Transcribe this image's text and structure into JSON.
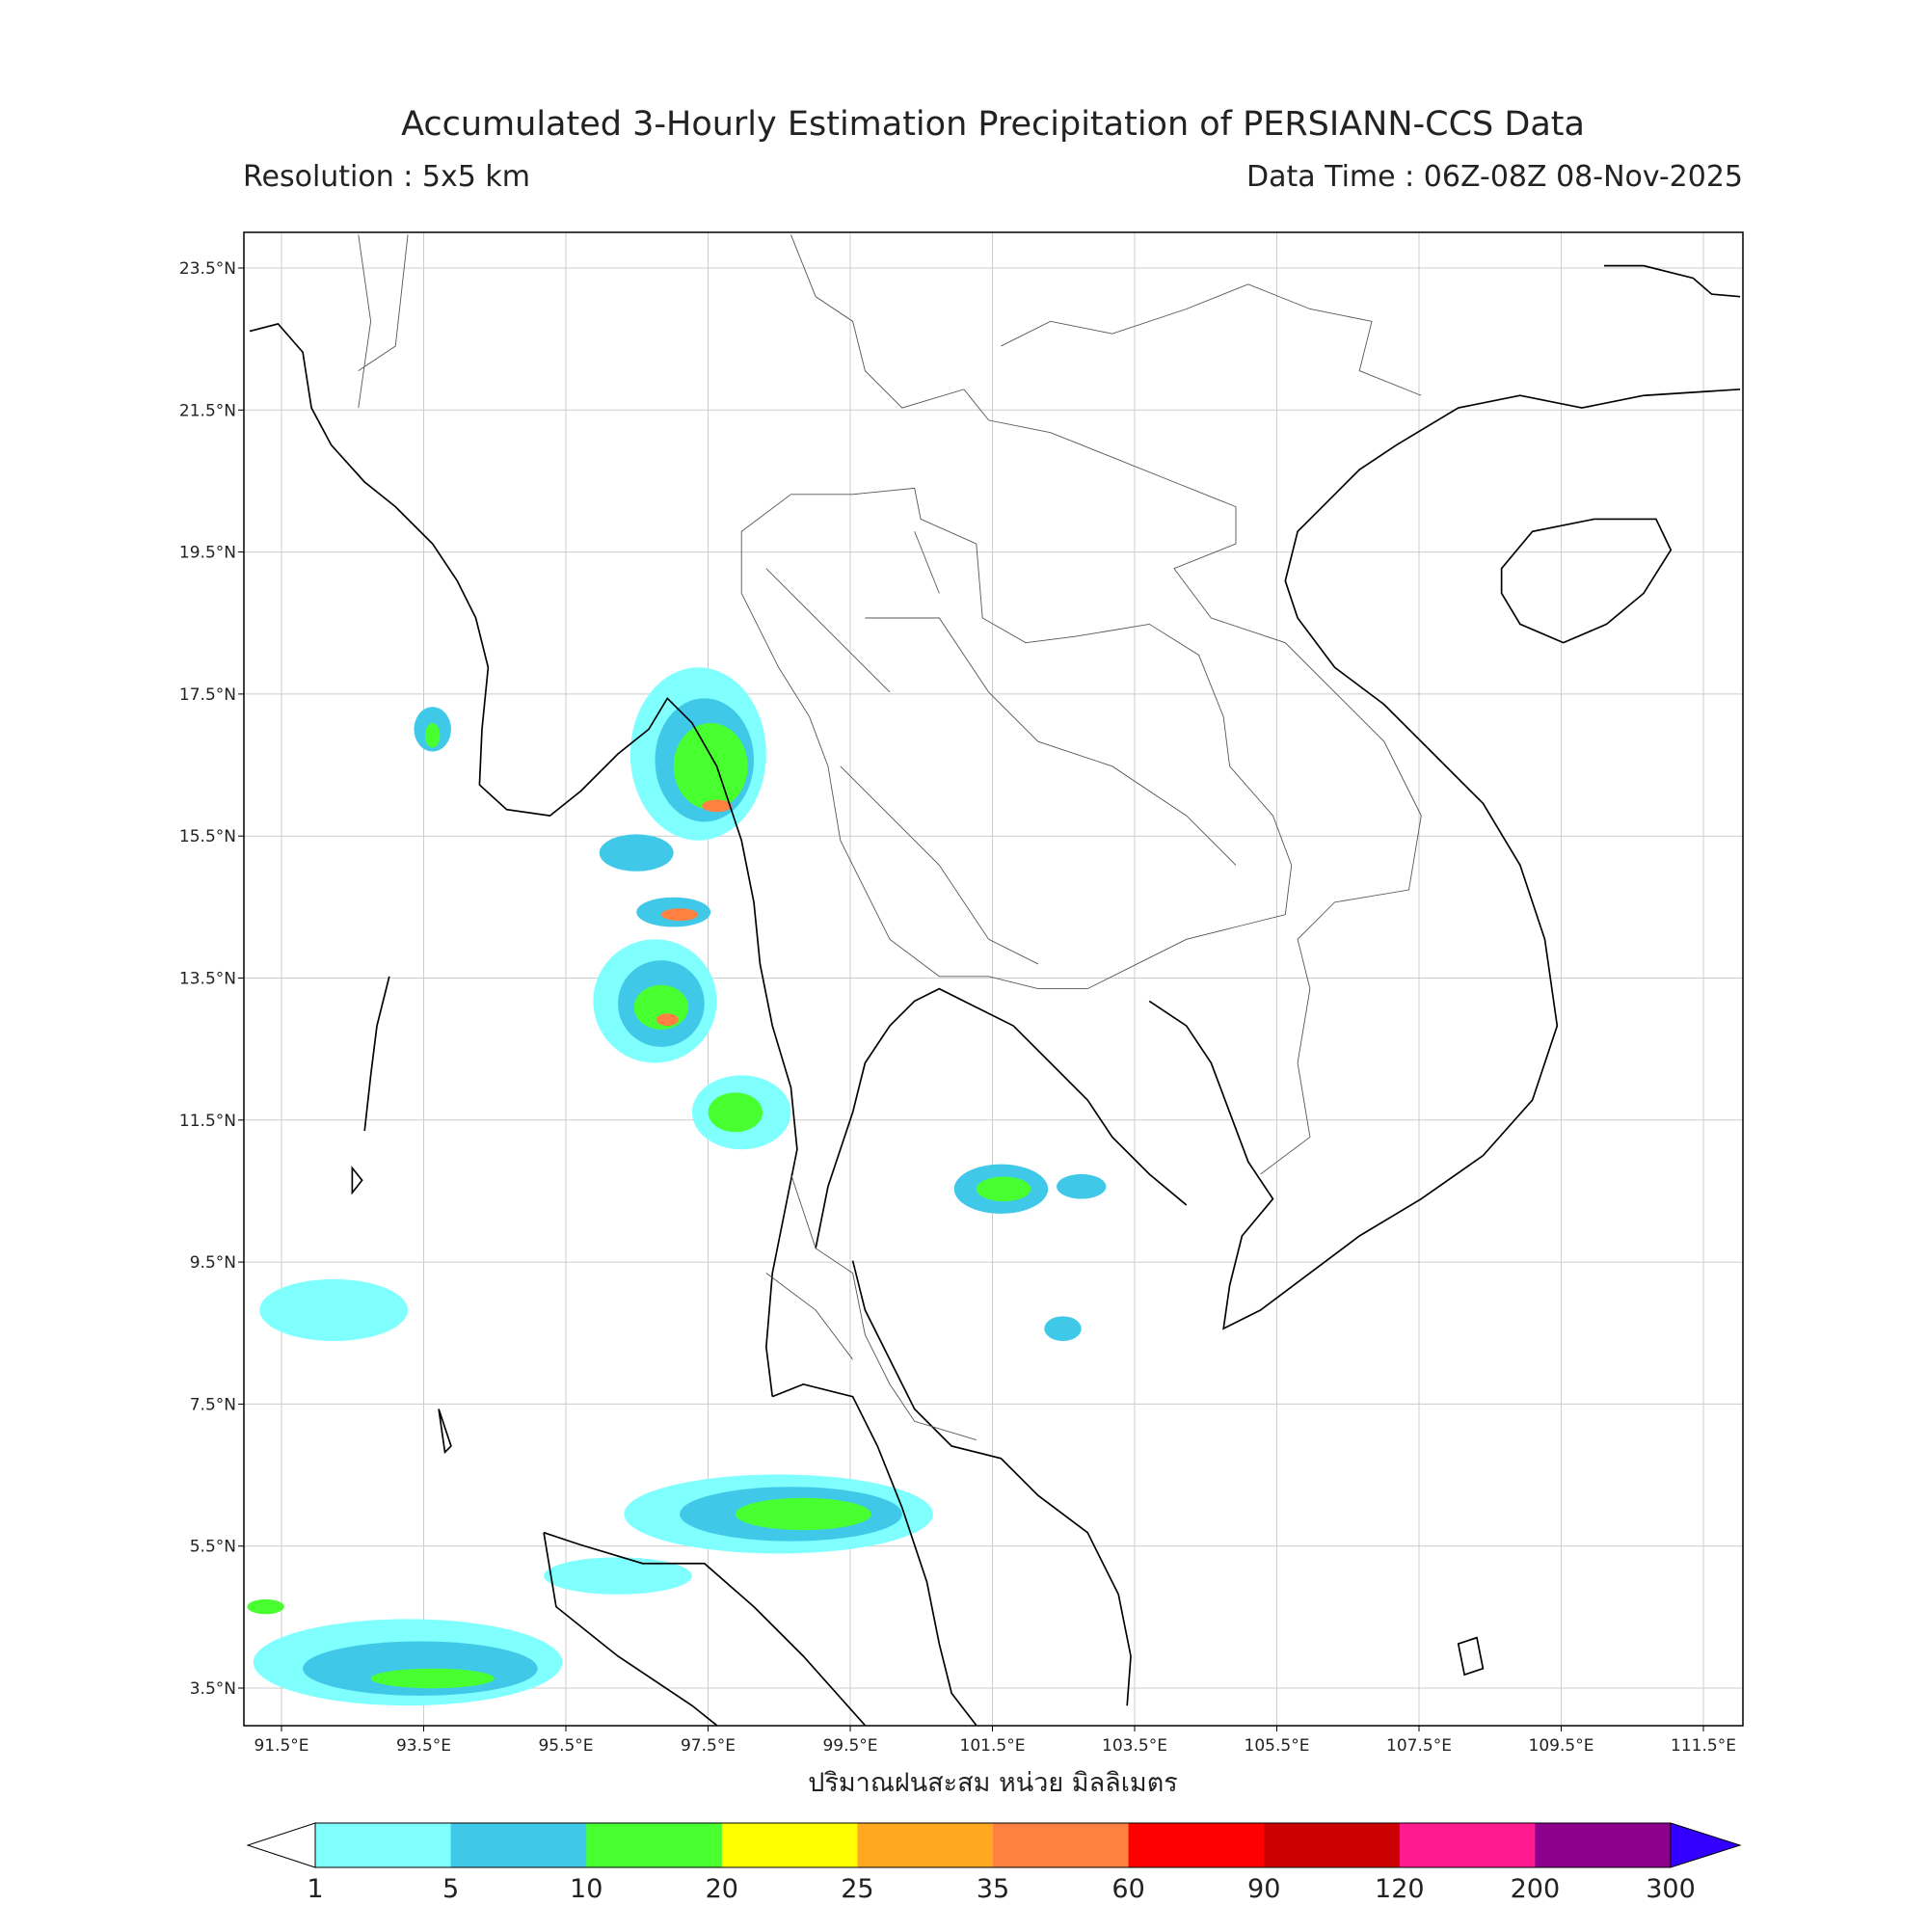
{
  "map": {
    "title": "Accumulated 3-Hourly Estimation Precipitation of PERSIANN-CCS Data",
    "resolution": "Resolution : 5x5 km",
    "data_time": "Data Time : 06Z-08Z 08-Nov-2025",
    "lat_ticks": [
      "23.5°N",
      "21.5°N",
      "19.5°N",
      "17.5°N",
      "15.5°N",
      "13.5°N",
      "11.5°N",
      "9.5°N",
      "7.5°N",
      "5.5°N",
      "3.5°N"
    ],
    "lon_ticks": [
      "91.5°E",
      "93.5°E",
      "95.5°E",
      "97.5°E",
      "99.5°E",
      "101.5°E",
      "103.5°E",
      "105.5°E",
      "107.5°E",
      "109.5°E",
      "111.5°E"
    ],
    "axis_label": "ปริมาณฝนสะสม หน่วย มิลลิเมตร"
  },
  "colorbar": {
    "levels": [
      1,
      5,
      10,
      20,
      25,
      35,
      60,
      90,
      120,
      200,
      300
    ],
    "colors": [
      "#80ffff",
      "#40c8e8",
      "#48ff30",
      "#ffff00",
      "#ffa820",
      "#ff8040",
      "#ff0000",
      "#cc0000",
      "#ff1a90",
      "#8c008c"
    ],
    "under_color": "#ffffff",
    "over_color": "#3300ff"
  }
}
